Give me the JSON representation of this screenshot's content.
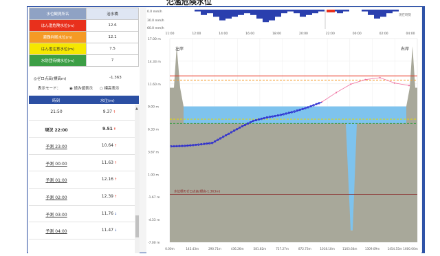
{
  "page_title": "氾濫危険水位",
  "levels": {
    "header": {
      "label": "水位観測所名",
      "value": "治水橋"
    },
    "rows": [
      {
        "label": "はん濫危険水位(m)",
        "value": "12.6",
        "color": "#e8301c"
      },
      {
        "label": "避難判断水位(m)",
        "value": "12.1",
        "color": "#f59a25"
      },
      {
        "label": "はん濫注意水位(m)",
        "value": "7.5",
        "color": "#f6e700"
      },
      {
        "label": "水防団待機水位(m)",
        "value": "7",
        "color": "#3c9e45"
      }
    ]
  },
  "zero": {
    "label": "◎ゼロ点高(標高m)",
    "value": "-1.363"
  },
  "mode": {
    "label": "表示モード：",
    "opt1": "◉ 読み値表示",
    "opt2": "○ 標高表示"
  },
  "obs": {
    "col_time": "時刻",
    "col_level": "水位(m)",
    "rows": [
      {
        "time": "21:50",
        "level": "9.37",
        "arrow": "↑"
      },
      {
        "time": "現況 22:00",
        "level": "9.51",
        "arrow": "↑"
      },
      {
        "time": "予測 23:00",
        "level": "10.64",
        "arrow": "↑"
      },
      {
        "time": "予測 00:00",
        "level": "11.63",
        "arrow": "↑"
      },
      {
        "time": "予測 01:00",
        "level": "12.16",
        "arrow": "↑"
      },
      {
        "time": "予測 02:00",
        "level": "12.39",
        "arrow": "↑"
      },
      {
        "time": "予測 03:00",
        "level": "11.76",
        "arrow": "↓"
      },
      {
        "time": "予測 04:00",
        "level": "11.47",
        "arrow": "↓"
      }
    ]
  },
  "chart": {
    "rain_ticks": [
      "0.0 mm/h",
      "30.0 mm/h",
      "60.0 mm/h"
    ],
    "rain_note": "現在時刻",
    "time_ticks": [
      "11:00",
      "12:00",
      "14:00",
      "16:00",
      "18:00",
      "20:00",
      "22:00",
      "00:00",
      "02:00",
      "04:00"
    ],
    "y_ticks": [
      "17.00 m",
      "14.33 m",
      "11.60 m",
      "9.00 m",
      "6.33 m",
      "3.67 m",
      "1.00 m",
      "-1.67 m",
      "-4.33 m",
      "-7.00 m"
    ],
    "x_ticks": [
      "0.00m",
      "145.43m",
      "290.71m",
      "436.26m",
      "581.82m",
      "727.27m",
      "872.73m",
      "1018.18m",
      "1163.64m",
      "1309.09m",
      "1454.55m",
      "1600.00m"
    ],
    "bank_left": "左岸",
    "bank_right": "右岸",
    "zero_label": "水位標のゼロ点高(標高-1.363m)",
    "colors": {
      "observed": "#2a2ad0",
      "forecast": "#ef6fa0",
      "water": "#7ec3ee",
      "ground": "#a8a89a",
      "danger": "#e8301c"
    }
  },
  "chart_data": {
    "type": "line",
    "title": "",
    "xlabel": "",
    "ylabel": "",
    "ylim": [
      -7.0,
      17.0
    ],
    "observed": {
      "x": [
        "11:00",
        "12:00",
        "13:00",
        "14:00",
        "15:00",
        "16:00",
        "17:00",
        "18:00",
        "19:00",
        "20:00",
        "21:00",
        "22:00"
      ],
      "y": [
        4.3,
        4.35,
        4.5,
        4.7,
        5.6,
        6.5,
        7.3,
        7.7,
        8.0,
        8.4,
        8.9,
        9.51
      ]
    },
    "forecast": {
      "x": [
        "22:00",
        "23:00",
        "00:00",
        "01:00",
        "02:00",
        "03:00",
        "04:00"
      ],
      "y": [
        9.51,
        10.64,
        11.63,
        12.16,
        12.39,
        11.76,
        11.47
      ]
    },
    "reference_levels": [
      12.6,
      12.1,
      7.5,
      7.0
    ],
    "zero_elevation": -1.363
  }
}
